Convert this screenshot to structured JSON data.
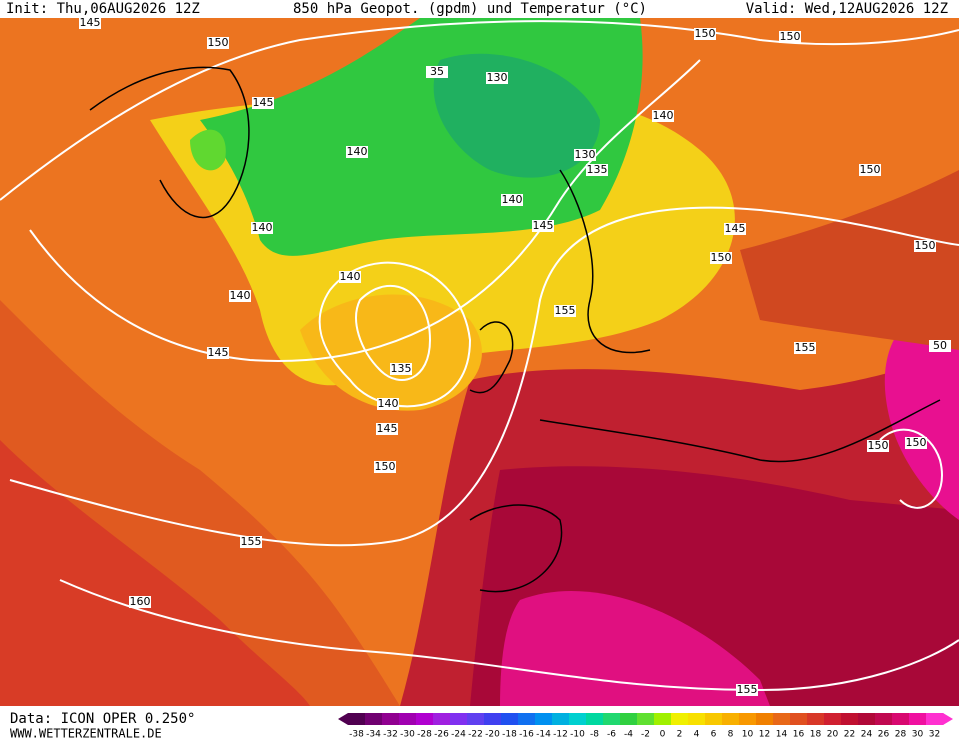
{
  "header": {
    "init": "Init: Thu,06AUG2026 12Z",
    "title": "850 hPa Geopot. (gpdm) und Temperatur (°C)",
    "valid": "Valid: Wed,12AUG2026 12Z"
  },
  "footer": {
    "data": "Data: ICON OPER 0.250°",
    "site": "WWW.WETTERZENTRALE.DE"
  },
  "colorbar": {
    "labels": [
      -38,
      -34,
      -32,
      -30,
      -28,
      -26,
      -24,
      -22,
      -20,
      -18,
      -16,
      -14,
      -12,
      -10,
      -8,
      -6,
      -4,
      -2,
      0,
      2,
      4,
      6,
      8,
      10,
      12,
      14,
      16,
      18,
      20,
      22,
      24,
      26,
      28,
      30,
      32
    ],
    "colors": [
      "#500050",
      "#700070",
      "#900090",
      "#a000b0",
      "#b000d0",
      "#a020e0",
      "#8030f0",
      "#6040f0",
      "#4040f0",
      "#2050f0",
      "#1070f0",
      "#0090f0",
      "#00b0e0",
      "#00d0d0",
      "#00d8a0",
      "#20d870",
      "#30d040",
      "#60e030",
      "#a0f000",
      "#f0f000",
      "#f8e000",
      "#f8c800",
      "#f8b000",
      "#f89800",
      "#f08000",
      "#e86818",
      "#e05020",
      "#d83828",
      "#d02030",
      "#c01030",
      "#b00838",
      "#c00850",
      "#d80870",
      "#f010a0",
      "#ff30d0"
    ]
  },
  "contours": [
    "145",
    "150",
    "150",
    "150",
    "35",
    "130",
    "145",
    "140",
    "140",
    "130",
    "135",
    "140",
    "140",
    "145",
    "145",
    "150",
    "150",
    "150",
    "140",
    "140",
    "155",
    "145",
    "155",
    "135",
    "140",
    "145",
    "150",
    "150",
    "150",
    "155",
    "160",
    "155",
    "50"
  ]
}
